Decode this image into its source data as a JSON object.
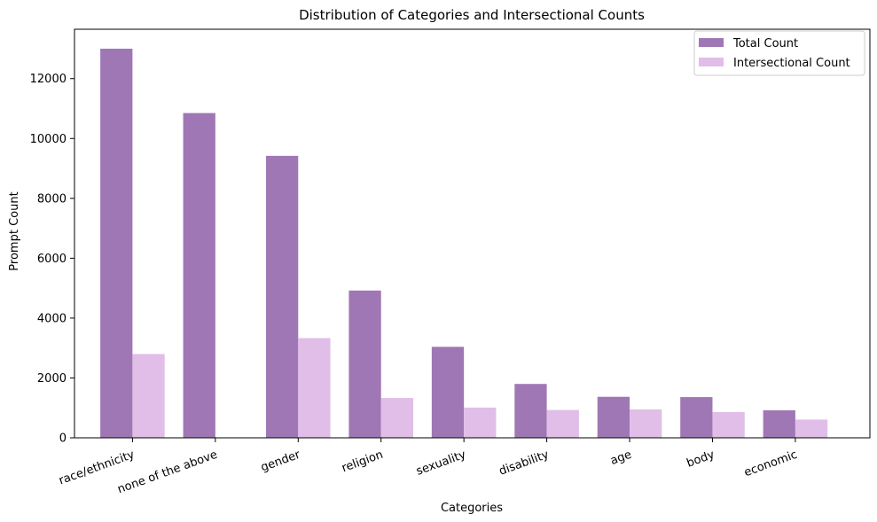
{
  "chart_data": {
    "type": "bar",
    "title": "Distribution of Categories and Intersectional Counts",
    "xlabel": "Categories",
    "ylabel": "Prompt Count",
    "categories": [
      "race/ethnicity",
      "none of the above",
      "gender",
      "religion",
      "sexuality",
      "disability",
      "age",
      "body",
      "economic"
    ],
    "series": [
      {
        "name": "Total Count",
        "color": "#a077b5",
        "values": [
          13000,
          10850,
          9420,
          4920,
          3040,
          1800,
          1370,
          1360,
          920
        ]
      },
      {
        "name": "Intersectional Count",
        "color": "#e1bee7",
        "values": [
          2800,
          0,
          3330,
          1330,
          1010,
          930,
          950,
          860,
          610
        ]
      }
    ],
    "ylim": [
      0,
      13650
    ],
    "yticks": [
      0,
      2000,
      4000,
      6000,
      8000,
      10000,
      12000
    ],
    "grid": false,
    "legend_position": "upper right"
  }
}
